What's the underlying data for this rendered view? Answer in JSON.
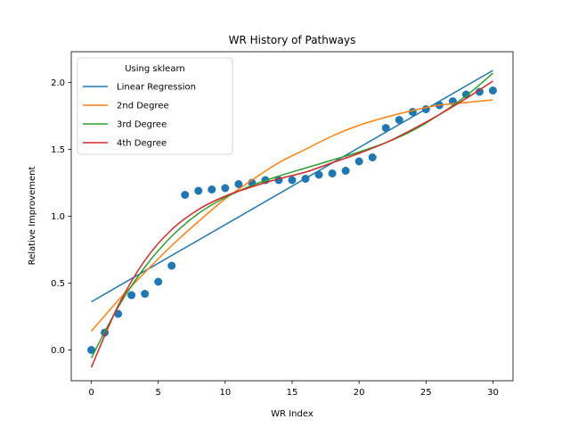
{
  "chart_data": {
    "type": "scatter",
    "title": "WR History of Pathways",
    "xlabel": "WR Index",
    "ylabel": "Relative Improvement",
    "xlim": [
      -1.5,
      31.5
    ],
    "ylim": [
      -0.23,
      2.23
    ],
    "xticks": [
      0,
      5,
      10,
      15,
      20,
      25,
      30
    ],
    "yticks": [
      0.0,
      0.5,
      1.0,
      1.5,
      2.0
    ],
    "xtick_labels": [
      "0",
      "5",
      "10",
      "15",
      "20",
      "25",
      "30"
    ],
    "ytick_labels": [
      "0.0",
      "0.5",
      "1.0",
      "1.5",
      "2.0"
    ],
    "grid": false,
    "legend": {
      "title": "Using sklearn",
      "placement": "top-left"
    },
    "points": {
      "color": "#1f77b4",
      "x": [
        0,
        1,
        2,
        3,
        4,
        5,
        6,
        7,
        8,
        9,
        10,
        11,
        12,
        13,
        14,
        15,
        16,
        17,
        18,
        19,
        20,
        21,
        22,
        23,
        24,
        25,
        26,
        27,
        28,
        29,
        30
      ],
      "y": [
        0.0,
        0.13,
        0.27,
        0.41,
        0.42,
        0.51,
        0.63,
        1.16,
        1.19,
        1.2,
        1.21,
        1.24,
        1.25,
        1.27,
        1.27,
        1.27,
        1.28,
        1.31,
        1.32,
        1.34,
        1.41,
        1.44,
        1.66,
        1.72,
        1.78,
        1.8,
        1.83,
        1.86,
        1.91,
        1.93,
        1.94
      ]
    },
    "series": [
      {
        "name": "Linear Regression",
        "color": "#1f77b4",
        "x": [
          0,
          30
        ],
        "y": [
          0.36,
          2.09
        ]
      },
      {
        "name": "2nd Degree",
        "color": "#ff7f0e",
        "x": [
          0,
          2,
          4,
          6,
          8,
          10,
          12,
          14,
          16,
          18,
          20,
          22,
          24,
          26,
          28,
          30
        ],
        "y": [
          0.14,
          0.37,
          0.58,
          0.78,
          0.96,
          1.13,
          1.27,
          1.4,
          1.5,
          1.6,
          1.68,
          1.74,
          1.79,
          1.83,
          1.85,
          1.87
        ]
      },
      {
        "name": "3rd Degree",
        "color": "#2ca02c",
        "x": [
          0,
          2,
          4,
          6,
          8,
          10,
          12,
          14,
          16,
          18,
          20,
          22,
          24,
          26,
          28,
          30
        ],
        "y": [
          -0.06,
          0.32,
          0.62,
          0.85,
          1.02,
          1.14,
          1.23,
          1.3,
          1.36,
          1.42,
          1.48,
          1.55,
          1.64,
          1.76,
          1.9,
          2.07
        ]
      },
      {
        "name": "4th Degree",
        "color": "#d62728",
        "x": [
          0,
          2,
          4,
          6,
          8,
          10,
          12,
          14,
          16,
          18,
          20,
          22,
          24,
          26,
          28,
          30
        ],
        "y": [
          -0.13,
          0.33,
          0.67,
          0.9,
          1.05,
          1.15,
          1.22,
          1.28,
          1.33,
          1.4,
          1.47,
          1.55,
          1.65,
          1.76,
          1.88,
          2.01
        ]
      }
    ]
  }
}
